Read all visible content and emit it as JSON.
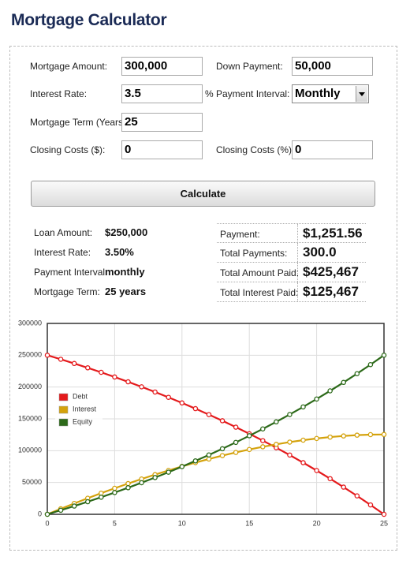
{
  "header": {
    "title": "Mortgage Calculator"
  },
  "form": {
    "mortgage_amount": {
      "label": "Mortgage Amount:",
      "value": "300,000"
    },
    "down_payment": {
      "label": "Down Payment:",
      "value": "50,000"
    },
    "interest_rate": {
      "label": "Interest Rate:",
      "value": "3.5",
      "unit": "%"
    },
    "payment_interval": {
      "label": "Payment Interval:",
      "value": "Monthly"
    },
    "mortgage_term": {
      "label": "Mortgage Term (Years)",
      "value": "25"
    },
    "closing_costs_amount": {
      "label": "Closing Costs ($):",
      "value": "0"
    },
    "closing_costs_percent": {
      "label": "Closing Costs (%):",
      "value": "0"
    },
    "button": "Calculate"
  },
  "summary": [
    {
      "label": "Loan Amount:",
      "value": "$250,000"
    },
    {
      "label": "Interest Rate:",
      "value": "3.50%"
    },
    {
      "label": "Payment Interval:",
      "value": "monthly"
    },
    {
      "label": "Mortgage Term:",
      "value": "25 years"
    }
  ],
  "totals": [
    {
      "label": "Payment:",
      "value": "$1,251.56"
    },
    {
      "label": "Total Payments:",
      "value": "300.0"
    },
    {
      "label": "Total Amount Paid:",
      "value": "$425,467"
    },
    {
      "label": "Total Interest Paid:",
      "value": "$125,467"
    }
  ],
  "chart_data": {
    "type": "line",
    "x": [
      0,
      1,
      2,
      3,
      4,
      5,
      6,
      7,
      8,
      9,
      10,
      11,
      12,
      13,
      14,
      15,
      16,
      17,
      18,
      19,
      20,
      21,
      22,
      23,
      24,
      25
    ],
    "series": [
      {
        "name": "Debt",
        "color": "#e41a1c",
        "values": [
          250000,
          243627,
          237033,
          230203,
          223129,
          215803,
          208217,
          200360,
          192225,
          183800,
          175075,
          166040,
          156683,
          146995,
          136963,
          126572,
          115810,
          104668,
          93128,
          81178,
          68803,
          55990,
          42718,
          28975,
          14745,
          0
        ]
      },
      {
        "name": "Interest",
        "color": "#d4a20c",
        "values": [
          0,
          8646,
          17070,
          25259,
          33204,
          40897,
          48329,
          55491,
          62375,
          68968,
          75262,
          81246,
          86908,
          92239,
          97225,
          101853,
          106110,
          109986,
          113465,
          116534,
          119177,
          121383,
          123131,
          124406,
          125194,
          125468
        ]
      },
      {
        "name": "Equity",
        "color": "#2d6a1a",
        "values": [
          0,
          6373,
          12967,
          19797,
          26871,
          34197,
          41783,
          49640,
          57775,
          66200,
          74925,
          83960,
          93317,
          103005,
          113037,
          123428,
          134190,
          145332,
          156872,
          168822,
          181197,
          194010,
          207282,
          221025,
          235255,
          250000
        ]
      }
    ],
    "xlim": [
      0,
      25
    ],
    "ylim": [
      0,
      300000
    ],
    "xticks": [
      0,
      5,
      10,
      15,
      20,
      25
    ],
    "yticks": [
      0,
      50000,
      100000,
      150000,
      200000,
      250000,
      300000
    ],
    "grid": true,
    "legend": "upper left"
  }
}
